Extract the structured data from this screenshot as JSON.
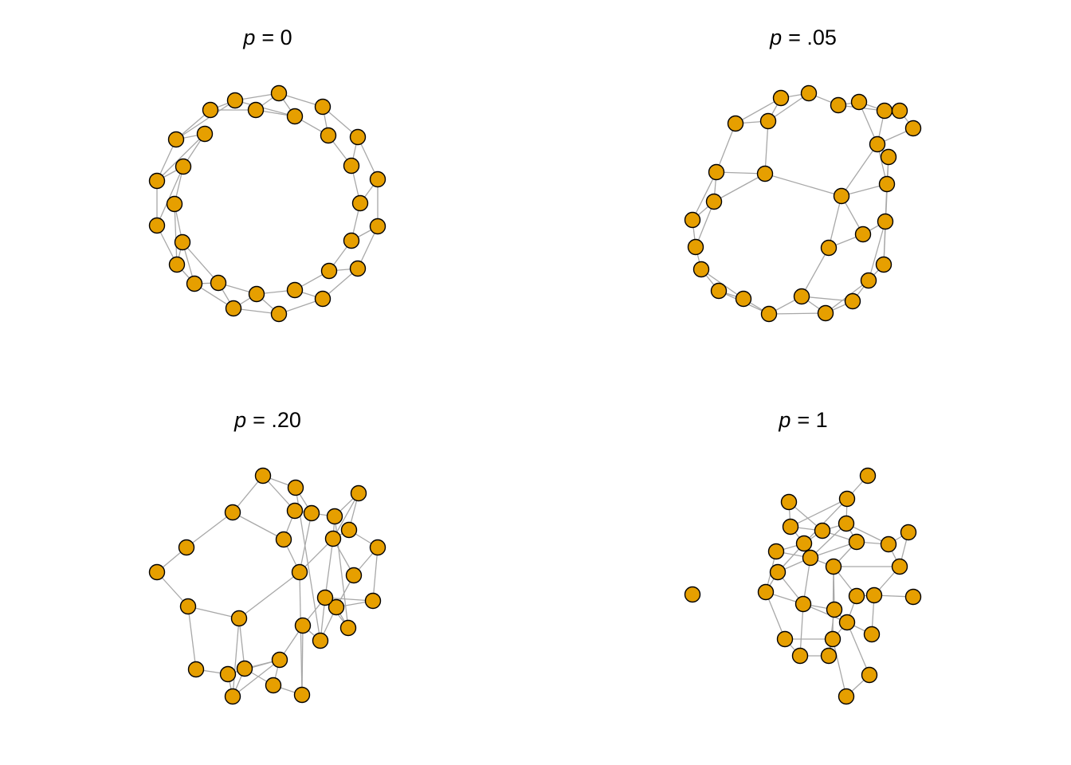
{
  "style": {
    "node_fill": "#E69F00",
    "node_stroke": "#000000",
    "edge_color": "#a8a8a8"
  },
  "panels": [
    {
      "id": "p0",
      "title_var": "p",
      "title_value": "= 0"
    },
    {
      "id": "p005",
      "title_var": "p",
      "title_value": "= .05"
    },
    {
      "id": "p020",
      "title_var": "p",
      "title_value": "= .20"
    },
    {
      "id": "p1",
      "title_var": "p",
      "title_value": "= 1"
    }
  ]
}
